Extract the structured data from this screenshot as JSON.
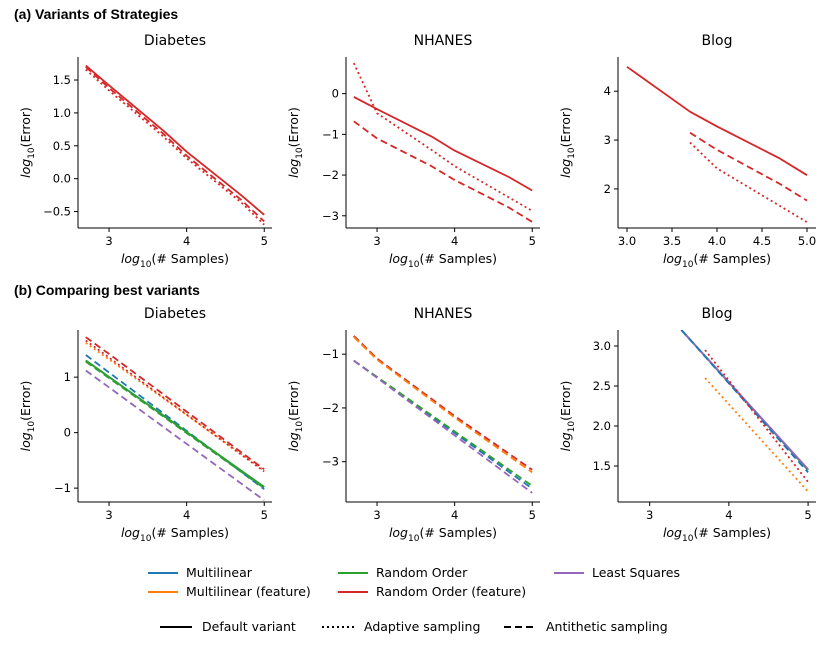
{
  "sections": {
    "a": "(a) Variants of Strategies",
    "b": "(b) Comparing best variants"
  },
  "axis": {
    "xlabel": "log10(# Samples)",
    "ylabel": "log10(Error)"
  },
  "colors": {
    "Multilinear": "#1f77b4",
    "Multilinear (feature)": "#ff7f0e",
    "Random Order": "#2ca02c",
    "Random Order (feature)": "#d62728",
    "Least Squares": "#9467bd"
  },
  "legend": {
    "methods": [
      "Multilinear",
      "Random Order",
      "Least Squares",
      "Multilinear (feature)",
      "Random Order (feature)"
    ],
    "styles": [
      {
        "label": "Default variant",
        "dash": "solid"
      },
      {
        "label": "Adaptive sampling",
        "dash": "dotted"
      },
      {
        "label": "Antithetic sampling",
        "dash": "dashed"
      }
    ]
  },
  "chart_data": [
    {
      "type": "line",
      "row": "a",
      "title": "Diabetes",
      "xlim": [
        2.6,
        5.1
      ],
      "ylim": [
        -0.75,
        1.85
      ],
      "xticks": [
        3,
        4,
        5
      ],
      "yticks": [
        -0.5,
        0.0,
        0.5,
        1.0,
        1.5
      ],
      "xtick_labels": [
        "3",
        "4",
        "5"
      ],
      "ytick_labels": [
        "−0.5",
        "0.0",
        "0.5",
        "1.0",
        "1.5"
      ],
      "series": [
        {
          "method": "Random Order (feature)",
          "style": "solid",
          "x": [
            2.7,
            3.0,
            3.7,
            4.0,
            4.7,
            5.0
          ],
          "y": [
            1.72,
            1.42,
            0.73,
            0.41,
            -0.25,
            -0.55
          ]
        },
        {
          "method": "Random Order (feature)",
          "style": "dashed",
          "x": [
            2.7,
            3.0,
            3.7,
            4.0,
            4.7,
            5.0
          ],
          "y": [
            1.7,
            1.38,
            0.68,
            0.35,
            -0.32,
            -0.65
          ]
        },
        {
          "method": "Random Order (feature)",
          "style": "dotted",
          "x": [
            2.7,
            3.0,
            3.7,
            4.0,
            4.7,
            5.0
          ],
          "y": [
            1.66,
            1.34,
            0.64,
            0.31,
            -0.36,
            -0.7
          ]
        }
      ]
    },
    {
      "type": "line",
      "row": "a",
      "title": "NHANES",
      "xlim": [
        2.6,
        5.1
      ],
      "ylim": [
        -3.3,
        0.9
      ],
      "xticks": [
        3,
        4,
        5
      ],
      "yticks": [
        -3,
        -2,
        -1,
        0
      ],
      "xtick_labels": [
        "3",
        "4",
        "5"
      ],
      "ytick_labels": [
        "−3",
        "−2",
        "−1",
        "0"
      ],
      "series": [
        {
          "method": "Random Order (feature)",
          "style": "solid",
          "x": [
            2.7,
            3.0,
            3.7,
            4.0,
            4.7,
            5.0
          ],
          "y": [
            -0.08,
            -0.38,
            -1.05,
            -1.4,
            -2.05,
            -2.38
          ]
        },
        {
          "method": "Random Order (feature)",
          "style": "dashed",
          "x": [
            2.7,
            3.0,
            3.7,
            4.0,
            4.7,
            5.0
          ],
          "y": [
            -0.68,
            -1.1,
            -1.78,
            -2.12,
            -2.8,
            -3.15
          ]
        },
        {
          "method": "Random Order (feature)",
          "style": "dotted",
          "x": [
            2.7,
            3.0,
            3.7,
            4.0,
            4.7,
            5.0
          ],
          "y": [
            0.75,
            -0.48,
            -1.38,
            -1.78,
            -2.55,
            -2.88
          ]
        }
      ]
    },
    {
      "type": "line",
      "row": "a",
      "title": "Blog",
      "xlim": [
        2.9,
        5.1
      ],
      "ylim": [
        1.2,
        4.7
      ],
      "xticks": [
        3.0,
        3.5,
        4.0,
        4.5,
        5.0
      ],
      "yticks": [
        2,
        3,
        4
      ],
      "xtick_labels": [
        "3.0",
        "3.5",
        "4.0",
        "4.5",
        "5.0"
      ],
      "ytick_labels": [
        "2",
        "3",
        "4"
      ],
      "series": [
        {
          "method": "Random Order (feature)",
          "style": "solid",
          "x": [
            3.0,
            3.7,
            4.0,
            4.7,
            5.0
          ],
          "y": [
            4.5,
            3.58,
            3.28,
            2.62,
            2.28
          ]
        },
        {
          "method": "Random Order (feature)",
          "style": "dashed",
          "x": [
            3.7,
            4.0,
            4.7,
            5.0
          ],
          "y": [
            3.15,
            2.8,
            2.1,
            1.76
          ]
        },
        {
          "method": "Random Order (feature)",
          "style": "dotted",
          "x": [
            3.7,
            4.0,
            4.7,
            5.0
          ],
          "y": [
            2.95,
            2.42,
            1.65,
            1.32
          ]
        }
      ]
    },
    {
      "type": "line",
      "row": "b",
      "title": "Diabetes",
      "xlim": [
        2.6,
        5.1
      ],
      "ylim": [
        -1.25,
        1.85
      ],
      "xticks": [
        3,
        4,
        5
      ],
      "yticks": [
        -1,
        0,
        1
      ],
      "xtick_labels": [
        "3",
        "4",
        "5"
      ],
      "ytick_labels": [
        "−1",
        "0",
        "1"
      ],
      "series": [
        {
          "method": "Multilinear",
          "style": "solid",
          "x": [
            2.7,
            5.0
          ],
          "y": [
            1.3,
            -0.98
          ]
        },
        {
          "method": "Multilinear",
          "style": "dashed",
          "x": [
            2.7,
            5.0
          ],
          "y": [
            1.4,
            -1.02
          ]
        },
        {
          "method": "Random Order",
          "style": "solid",
          "x": [
            2.7,
            5.0
          ],
          "y": [
            1.3,
            -0.98
          ]
        },
        {
          "method": "Random Order",
          "style": "dashed",
          "x": [
            2.7,
            5.0
          ],
          "y": [
            1.28,
            -1.0
          ]
        },
        {
          "method": "Least Squares",
          "style": "dashed",
          "x": [
            2.7,
            5.0
          ],
          "y": [
            1.12,
            -1.22
          ]
        },
        {
          "method": "Multilinear (feature)",
          "style": "dotted",
          "x": [
            2.7,
            5.0
          ],
          "y": [
            1.62,
            -0.68
          ]
        },
        {
          "method": "Random Order (feature)",
          "style": "dotted",
          "x": [
            2.7,
            5.0
          ],
          "y": [
            1.66,
            -0.7
          ]
        },
        {
          "method": "Random Order (feature)",
          "style": "dashed",
          "x": [
            2.7,
            3.0,
            4.0,
            5.0
          ],
          "y": [
            1.72,
            1.42,
            0.38,
            -0.66
          ]
        }
      ]
    },
    {
      "type": "line",
      "row": "b",
      "title": "NHANES",
      "xlim": [
        2.6,
        5.1
      ],
      "ylim": [
        -3.75,
        -0.55
      ],
      "xticks": [
        3,
        4,
        5
      ],
      "yticks": [
        -3,
        -2,
        -1
      ],
      "xtick_labels": [
        "3",
        "4",
        "5"
      ],
      "ytick_labels": [
        "−3",
        "−2",
        "−1"
      ],
      "series": [
        {
          "method": "Random Order (feature)",
          "style": "dashed",
          "x": [
            2.7,
            3.0,
            4.0,
            5.0
          ],
          "y": [
            -0.66,
            -1.08,
            -2.15,
            -3.15
          ]
        },
        {
          "method": "Multilinear (feature)",
          "style": "dashed",
          "x": [
            2.7,
            3.0,
            4.0,
            5.0
          ],
          "y": [
            -0.68,
            -1.1,
            -2.18,
            -3.2
          ]
        },
        {
          "method": "Multilinear",
          "style": "dashed",
          "x": [
            2.7,
            5.0
          ],
          "y": [
            -1.12,
            -3.5
          ]
        },
        {
          "method": "Random Order",
          "style": "dashed",
          "x": [
            2.7,
            5.0
          ],
          "y": [
            -1.12,
            -3.45
          ]
        },
        {
          "method": "Least Squares",
          "style": "dashed",
          "x": [
            2.7,
            5.0
          ],
          "y": [
            -1.12,
            -3.58
          ]
        }
      ]
    },
    {
      "type": "line",
      "row": "b",
      "title": "Blog",
      "xlim": [
        2.6,
        5.1
      ],
      "ylim": [
        1.05,
        3.2
      ],
      "xticks": [
        3,
        4,
        5
      ],
      "yticks": [
        1.5,
        2.0,
        2.5,
        3.0
      ],
      "xtick_labels": [
        "3",
        "4",
        "5"
      ],
      "ytick_labels": [
        "1.5",
        "2.0",
        "2.5",
        "3.0"
      ],
      "series": [
        {
          "method": "Multilinear",
          "style": "solid",
          "x": [
            3.4,
            5.0
          ],
          "y": [
            3.2,
            1.45
          ]
        },
        {
          "method": "Random Order",
          "style": "solid",
          "x": [
            3.4,
            5.0
          ],
          "y": [
            3.2,
            1.45
          ]
        },
        {
          "method": "Least Squares",
          "style": "solid",
          "x": [
            3.4,
            5.0
          ],
          "y": [
            3.2,
            1.46
          ]
        },
        {
          "method": "Multilinear",
          "style": "dashed",
          "x": [
            3.4,
            5.0
          ],
          "y": [
            3.2,
            1.42
          ]
        },
        {
          "method": "Random Order (feature)",
          "style": "dotted",
          "x": [
            3.7,
            5.0
          ],
          "y": [
            2.95,
            1.3
          ]
        },
        {
          "method": "Multilinear (feature)",
          "style": "dotted",
          "x": [
            3.7,
            5.0
          ],
          "y": [
            2.6,
            1.18
          ]
        }
      ]
    }
  ]
}
